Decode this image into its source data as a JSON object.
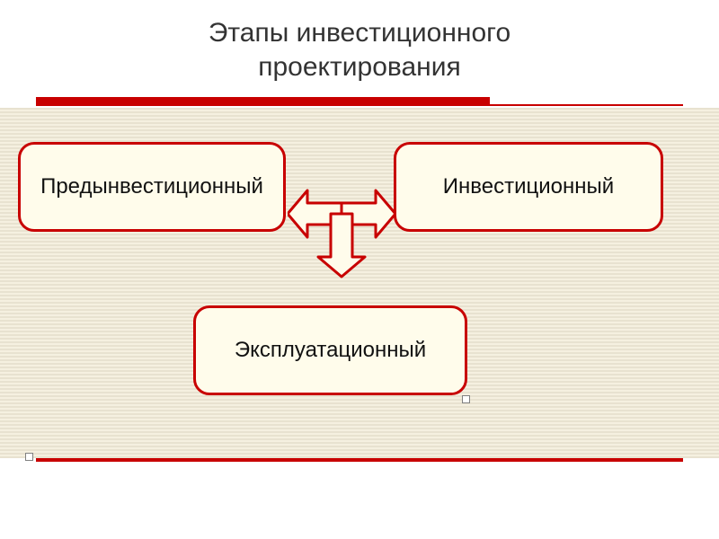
{
  "type": "flowchart",
  "title": "Этапы инвестиционного\nпроектирования",
  "title_fontsize": 30,
  "title_color": "#333333",
  "background": {
    "hatch_light": "#f5f0e0",
    "hatch_dark": "#e8e2d0"
  },
  "rules": {
    "color": "#c80000",
    "thick_height": 8,
    "thin_height": 2,
    "bottom_height": 4
  },
  "boxes": {
    "fill": "#fffceb",
    "border_color": "#c80000",
    "border_width": 3,
    "border_radius": 18,
    "font_size": 24,
    "text_color": "#111111",
    "pre": "Предынвестиционный",
    "inv": "Инвестиционный",
    "ops": "Эксплуатационный"
  },
  "arrows": {
    "fill": "#fffceb",
    "stroke": "#c80000",
    "stroke_width": 3
  },
  "handles": {
    "color": "#ffffff",
    "border": "#808080"
  }
}
